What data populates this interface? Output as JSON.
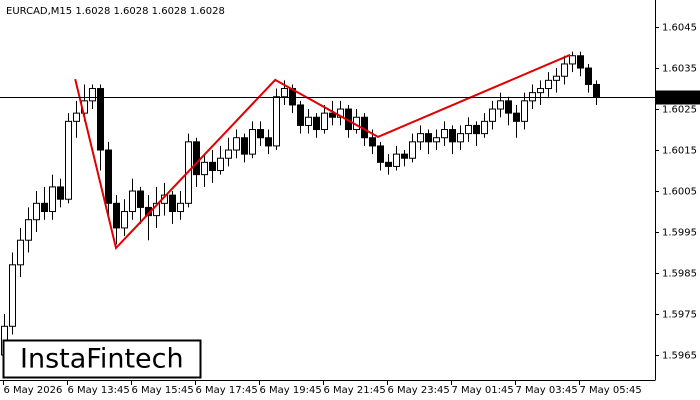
{
  "chart_data": {
    "type": "candlestick",
    "title": "EURCAD,M15  1.6028 1.6028 1.6028 1.6028",
    "watermark": "InstaFintech",
    "categories": [
      "6 May 2026",
      null,
      null,
      null,
      null,
      null,
      null,
      null,
      "6 May 13:45",
      null,
      null,
      null,
      null,
      null,
      null,
      null,
      "6 May 15:45",
      null,
      null,
      null,
      null,
      null,
      null,
      null,
      "6 May 17:45",
      null,
      null,
      null,
      null,
      null,
      null,
      null,
      "6 May 19:45",
      null,
      null,
      null,
      null,
      null,
      null,
      null,
      "6 May 21:45",
      null,
      null,
      null,
      null,
      null,
      null,
      null,
      "6 May 23:45",
      null,
      null,
      null,
      null,
      null,
      null,
      null,
      "7 May 01:45",
      null,
      null,
      null,
      null,
      null,
      null,
      null,
      "7 May 03:45",
      null,
      null,
      null,
      null,
      null,
      null,
      null,
      "7 May 05:45",
      null,
      null
    ],
    "ohlc": [
      [
        1.5965,
        1.5975,
        1.596,
        1.5972
      ],
      [
        1.5972,
        1.599,
        1.597,
        1.5987
      ],
      [
        1.5987,
        1.5996,
        1.5984,
        1.5993
      ],
      [
        1.5993,
        1.6001,
        1.599,
        1.5998
      ],
      [
        1.5998,
        1.6005,
        1.5995,
        1.6002
      ],
      [
        1.6002,
        1.6006,
        1.5998,
        1.6
      ],
      [
        1.6,
        1.6009,
        1.5998,
        1.6006
      ],
      [
        1.6006,
        1.6008,
        1.6001,
        1.6003
      ],
      [
        1.6003,
        1.6024,
        1.6002,
        1.6022
      ],
      [
        1.6022,
        1.6027,
        1.6018,
        1.6024
      ],
      [
        1.6024,
        1.6031,
        1.6022,
        1.6027
      ],
      [
        1.6027,
        1.6031,
        1.6025,
        1.603
      ],
      [
        1.603,
        1.6031,
        1.601,
        1.6015
      ],
      [
        1.6015,
        1.6017,
        1.5998,
        1.6002
      ],
      [
        1.6002,
        1.6004,
        1.5992,
        1.5996
      ],
      [
        1.5996,
        1.6003,
        1.5994,
        1.6
      ],
      [
        1.6,
        1.6008,
        1.5998,
        1.6005
      ],
      [
        1.6005,
        1.6006,
        1.5997,
        1.6001
      ],
      [
        1.6001,
        1.6004,
        1.5993,
        1.5999
      ],
      [
        1.5999,
        1.6006,
        1.5996,
        1.6002
      ],
      [
        1.6002,
        1.6007,
        1.5999,
        1.6004
      ],
      [
        1.6004,
        1.6005,
        1.5997,
        1.6
      ],
      [
        1.6,
        1.6005,
        1.5998,
        1.6002
      ],
      [
        1.6002,
        1.6019,
        1.6001,
        1.6017
      ],
      [
        1.6017,
        1.6018,
        1.6006,
        1.6009
      ],
      [
        1.6009,
        1.6014,
        1.6006,
        1.6012
      ],
      [
        1.6012,
        1.6015,
        1.6007,
        1.601
      ],
      [
        1.601,
        1.6016,
        1.6009,
        1.6013
      ],
      [
        1.6013,
        1.6018,
        1.6011,
        1.6015
      ],
      [
        1.6015,
        1.602,
        1.6013,
        1.6018
      ],
      [
        1.6018,
        1.6019,
        1.6012,
        1.6014
      ],
      [
        1.6014,
        1.6022,
        1.6013,
        1.602
      ],
      [
        1.602,
        1.6022,
        1.6016,
        1.6018
      ],
      [
        1.6018,
        1.602,
        1.6014,
        1.6016
      ],
      [
        1.6016,
        1.603,
        1.6015,
        1.6028
      ],
      [
        1.6028,
        1.6032,
        1.6026,
        1.603
      ],
      [
        1.603,
        1.6031,
        1.6024,
        1.6026
      ],
      [
        1.6026,
        1.6027,
        1.6019,
        1.6021
      ],
      [
        1.6021,
        1.6025,
        1.6019,
        1.6023
      ],
      [
        1.6023,
        1.6024,
        1.6018,
        1.602
      ],
      [
        1.602,
        1.6026,
        1.6019,
        1.6024
      ],
      [
        1.6024,
        1.6027,
        1.6021,
        1.6023
      ],
      [
        1.6023,
        1.6027,
        1.6021,
        1.6025
      ],
      [
        1.6025,
        1.6026,
        1.6018,
        1.602
      ],
      [
        1.602,
        1.6025,
        1.6019,
        1.6023
      ],
      [
        1.6023,
        1.6024,
        1.6016,
        1.6018
      ],
      [
        1.6018,
        1.602,
        1.6014,
        1.6016
      ],
      [
        1.6016,
        1.6017,
        1.601,
        1.6012
      ],
      [
        1.6012,
        1.6014,
        1.6009,
        1.6011
      ],
      [
        1.6011,
        1.6016,
        1.601,
        1.6014
      ],
      [
        1.6014,
        1.6015,
        1.6011,
        1.6013
      ],
      [
        1.6013,
        1.6019,
        1.6012,
        1.6017
      ],
      [
        1.6017,
        1.6021,
        1.6015,
        1.6019
      ],
      [
        1.6019,
        1.602,
        1.6014,
        1.6017
      ],
      [
        1.6017,
        1.602,
        1.6015,
        1.6018
      ],
      [
        1.6018,
        1.6022,
        1.6016,
        1.602
      ],
      [
        1.602,
        1.6021,
        1.6014,
        1.6017
      ],
      [
        1.6017,
        1.6021,
        1.6015,
        1.6019
      ],
      [
        1.6019,
        1.6023,
        1.6017,
        1.6021
      ],
      [
        1.6021,
        1.6022,
        1.6016,
        1.6019
      ],
      [
        1.6019,
        1.6024,
        1.6018,
        1.6022
      ],
      [
        1.6022,
        1.6027,
        1.602,
        1.6025
      ],
      [
        1.6025,
        1.6029,
        1.6023,
        1.6027
      ],
      [
        1.6027,
        1.6028,
        1.6021,
        1.6024
      ],
      [
        1.6024,
        1.6026,
        1.6018,
        1.6022
      ],
      [
        1.6022,
        1.6029,
        1.602,
        1.6027
      ],
      [
        1.6027,
        1.6031,
        1.6025,
        1.6029
      ],
      [
        1.6029,
        1.6032,
        1.6026,
        1.603
      ],
      [
        1.603,
        1.6034,
        1.6028,
        1.6032
      ],
      [
        1.6032,
        1.6035,
        1.6029,
        1.6033
      ],
      [
        1.6033,
        1.6038,
        1.6031,
        1.6036
      ],
      [
        1.6036,
        1.6039,
        1.6034,
        1.6038
      ],
      [
        1.6038,
        1.6039,
        1.6033,
        1.6035
      ],
      [
        1.6035,
        1.6036,
        1.6029,
        1.6031
      ],
      [
        1.6031,
        1.6032,
        1.6026,
        1.6028
      ]
    ],
    "pattern": {
      "color": "#e00000",
      "x": [
        8.9,
        14,
        33.9,
        46.75,
        70.75
      ],
      "y": [
        1.60323,
        1.59911,
        1.60321,
        1.60182,
        1.60382
      ]
    },
    "current_price": 1.6028,
    "ylim": [
      1.59589,
      1.60516
    ],
    "yticks": [
      1.6045,
      1.6035,
      1.6025,
      1.6015,
      1.6005,
      1.5995,
      1.5985,
      1.5975,
      1.5965
    ]
  }
}
